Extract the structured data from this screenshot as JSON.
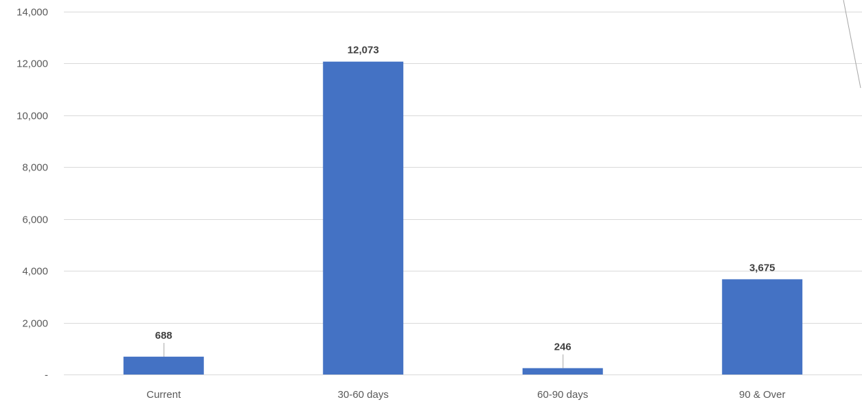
{
  "chart_data": {
    "type": "bar",
    "categories": [
      "Current",
      "30-60 days",
      "60-90 days",
      "90 & Over"
    ],
    "values": [
      688,
      12073,
      246,
      3675
    ],
    "data_labels": [
      "688",
      "12,073",
      "246",
      "3,675"
    ],
    "title": "",
    "xlabel": "",
    "ylabel": "",
    "ylim": [
      0,
      14000
    ],
    "y_ticks": [
      0,
      2000,
      4000,
      6000,
      8000,
      10000,
      12000,
      14000
    ],
    "y_tick_labels": [
      "-",
      "2,000",
      "4,000",
      "6,000",
      "8,000",
      "10,000",
      "12,000",
      "14,000"
    ],
    "grid": true,
    "legend": "none",
    "bar_color": "#4472c4"
  }
}
